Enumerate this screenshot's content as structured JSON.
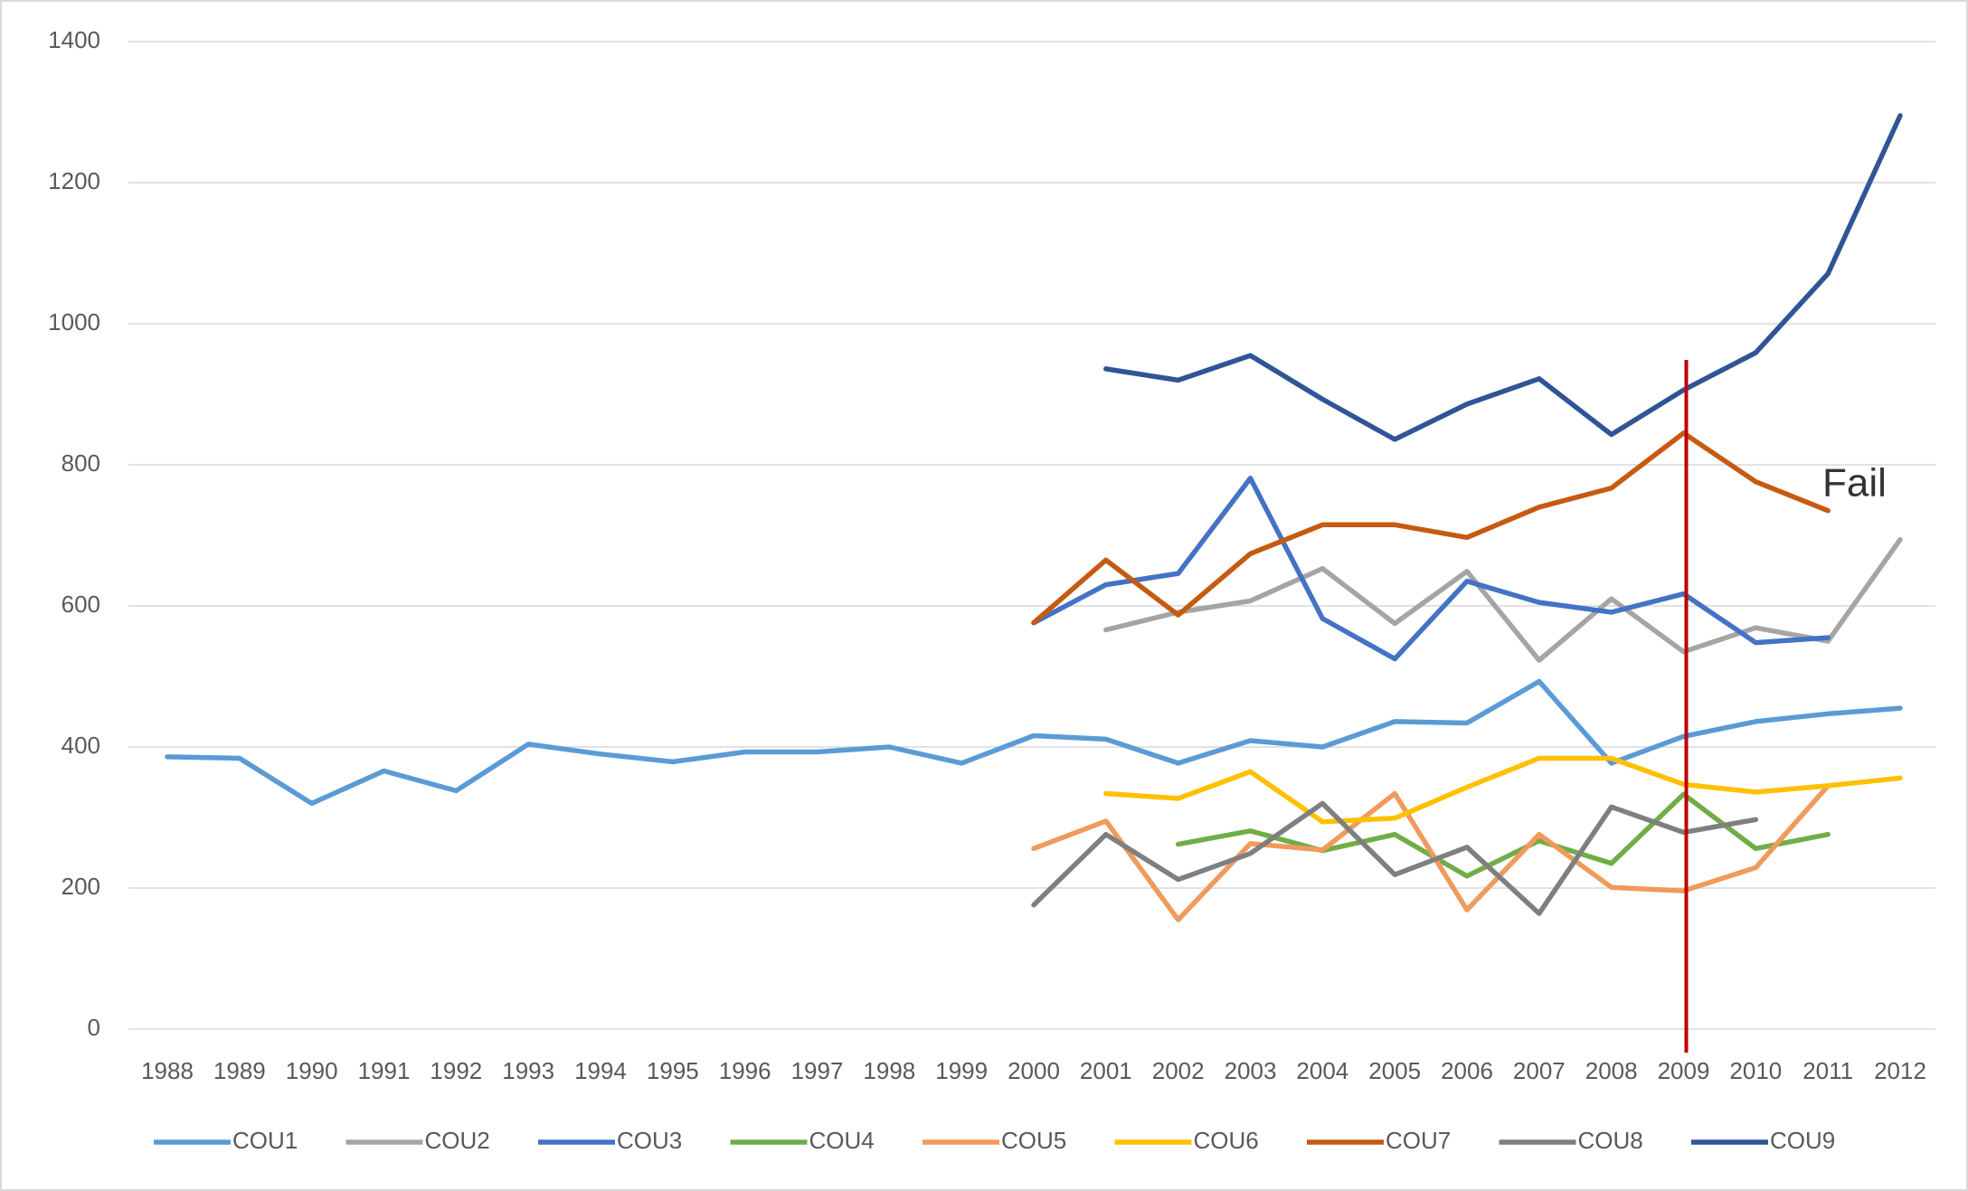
{
  "chart_data": {
    "type": "line",
    "categories": [
      "1988",
      "1989",
      "1990",
      "1991",
      "1992",
      "1993",
      "1994",
      "1995",
      "1996",
      "1997",
      "1998",
      "1999",
      "2000",
      "2001",
      "2002",
      "2003",
      "2004",
      "2005",
      "2006",
      "2007",
      "2008",
      "2009",
      "2010",
      "2011",
      "2012"
    ],
    "series": [
      {
        "name": "COU1",
        "color": "#5b9bd5",
        "values": [
          386,
          384,
          320,
          366,
          338,
          404,
          390,
          379,
          393,
          393,
          400,
          377,
          416,
          411,
          377,
          409,
          400,
          436,
          434,
          493,
          377,
          415,
          436,
          447,
          455
        ]
      },
      {
        "name": "COU2",
        "color": "#a5a5a5",
        "values": [
          null,
          null,
          null,
          null,
          null,
          null,
          null,
          null,
          null,
          null,
          null,
          null,
          null,
          566,
          591,
          607,
          653,
          575,
          649,
          523,
          610,
          535,
          569,
          550,
          694
        ]
      },
      {
        "name": "COU3",
        "color": "#4472c4",
        "values": [
          null,
          null,
          null,
          null,
          null,
          null,
          null,
          null,
          null,
          null,
          null,
          null,
          576,
          630,
          646,
          781,
          582,
          525,
          635,
          605,
          591,
          617,
          548,
          555,
          null
        ]
      },
      {
        "name": "COU4",
        "color": "#70ad47",
        "values": [
          null,
          null,
          null,
          null,
          null,
          null,
          null,
          null,
          null,
          null,
          null,
          null,
          null,
          null,
          262,
          281,
          253,
          276,
          217,
          267,
          235,
          333,
          256,
          276,
          null
        ]
      },
      {
        "name": "COU5",
        "color": "#f09a5c",
        "values": [
          null,
          null,
          null,
          null,
          null,
          null,
          null,
          null,
          null,
          null,
          null,
          null,
          256,
          295,
          155,
          263,
          254,
          334,
          169,
          276,
          201,
          196,
          229,
          345,
          null
        ]
      },
      {
        "name": "COU6",
        "color": "#ffc000",
        "values": [
          null,
          null,
          null,
          null,
          null,
          null,
          null,
          null,
          null,
          null,
          null,
          null,
          null,
          334,
          327,
          365,
          294,
          299,
          343,
          384,
          384,
          347,
          336,
          345,
          356
        ]
      },
      {
        "name": "COU7",
        "color": "#c55a11",
        "values": [
          null,
          null,
          null,
          null,
          null,
          null,
          null,
          null,
          null,
          null,
          null,
          null,
          576,
          665,
          587,
          674,
          715,
          715,
          697,
          740,
          767,
          845,
          776,
          735,
          null
        ]
      },
      {
        "name": "COU8",
        "color": "#7f7f7f",
        "values": [
          null,
          null,
          null,
          null,
          null,
          null,
          null,
          null,
          null,
          null,
          null,
          null,
          176,
          276,
          212,
          249,
          320,
          219,
          258,
          164,
          315,
          279,
          297,
          null,
          null
        ]
      },
      {
        "name": "COU9",
        "color": "#2f5597",
        "values": [
          null,
          null,
          null,
          null,
          null,
          null,
          null,
          null,
          null,
          null,
          null,
          null,
          null,
          936,
          920,
          955,
          893,
          836,
          886,
          922,
          843,
          906,
          959,
          1071,
          1295
        ]
      }
    ],
    "ylim": [
      0,
      1400
    ],
    "yticks": [
      0,
      200,
      400,
      600,
      800,
      1000,
      1200,
      1400
    ],
    "grid": true,
    "annotation": "Fail",
    "marker_line_color": "#c00000"
  }
}
